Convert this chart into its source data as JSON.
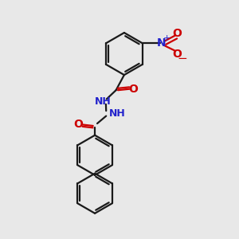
{
  "bg_color": "#e8e8e8",
  "bond_color": "#1a1a1a",
  "bond_width": 1.6,
  "N_color": "#2222cc",
  "O_color": "#cc0000",
  "font_size": 9,
  "fig_width": 3.0,
  "fig_height": 3.0,
  "dpi": 100,
  "xlim": [
    0,
    10
  ],
  "ylim": [
    0,
    10
  ]
}
